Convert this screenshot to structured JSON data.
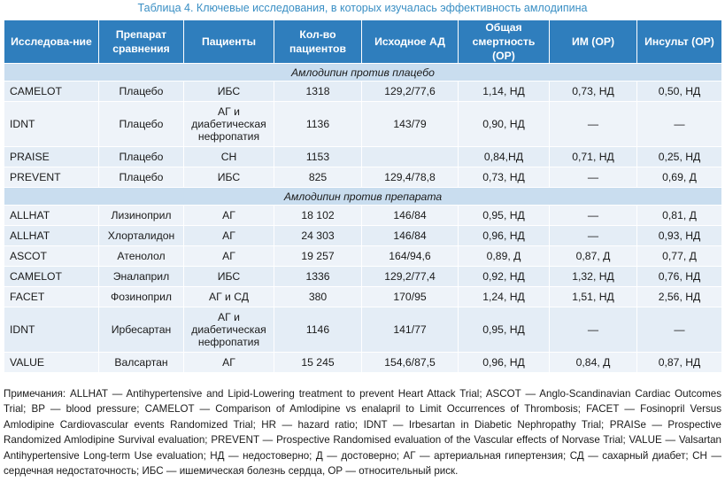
{
  "caption": "Таблица 4. Ключевые исследования, в которых изучалась эффективность амлодипина",
  "headers": [
    "Исследова-ние",
    "Препарат сравнения",
    "Пациенты",
    "Кол-во пациентов",
    "Исходное АД",
    "Общая смертность (ОР)",
    "ИМ (ОР)",
    "Инсульт (ОР)"
  ],
  "section1": "Амлодипин против плацебо",
  "rows1": [
    [
      "CAMELOT",
      "Плацебо",
      "ИБС",
      "1318",
      "129,2/77,6",
      "1,14, НД",
      "0,73, НД",
      "0,50, НД"
    ],
    [
      "IDNT",
      "Плацебо",
      "АГ и диабетическая нефропатия",
      "1136",
      "143/79",
      "0,90, НД",
      "—",
      "—"
    ],
    [
      "PRAISE",
      "Плацебо",
      "СН",
      "1153",
      "",
      "0,84,НД",
      "0,71, НД",
      "0,25, НД"
    ],
    [
      "PREVENT",
      "Плацебо",
      "ИБС",
      "825",
      "129,4/78,8",
      "0,73, НД",
      "—",
      "0,69, Д"
    ]
  ],
  "section2": "Амлодипин против препарата",
  "rows2": [
    [
      "ALLHAT",
      "Лизиноприл",
      "АГ",
      "18 102",
      "146/84",
      "0,95, НД",
      "—",
      "0,81, Д"
    ],
    [
      "ALLHAT",
      "Хлорталидон",
      "АГ",
      "24 303",
      "146/84",
      "0,96, НД",
      "—",
      "0,93, НД"
    ],
    [
      "ASCOT",
      "Атенолол",
      "АГ",
      "19 257",
      "164/94,6",
      "0,89, Д",
      "0,87, Д",
      "0,77, Д"
    ],
    [
      "CAMELOT",
      "Эналаприл",
      "ИБС",
      "1336",
      "129,2/77,4",
      "0,92, НД",
      "1,32, НД",
      "0,76, НД"
    ],
    [
      "FACET",
      "Фозиноприл",
      "АГ и СД",
      "380",
      "170/95",
      "1,24, НД",
      "1,51, НД",
      "2,56, НД"
    ],
    [
      "IDNT",
      "Ирбесартан",
      "АГ и диабетическая нефропатия",
      "1146",
      "141/77",
      "0,95, НД",
      "—",
      "—"
    ],
    [
      "VALUE",
      "Валсартан",
      "АГ",
      "15 245",
      "154,6/87,5",
      "0,96, НД",
      "0,84, Д",
      "0,87, НД"
    ]
  ],
  "notes": "Примечания: ALLHAT — Antihypertensive and Lipid-Lowering treatment to prevent Heart Attack Trial; ASCOT — Anglo-Scandinavian Cardiac Outcomes Trial; BP — blood pressure; CAMELOT — Comparison of Amlodipine vs enalapril to Limit Occurrences of Thrombosis; FACET — Fosinopril Versus Amlodipine Cardiovascular events Randomized Trial; HR — hazard ratio; IDNT — Irbesartan in Diabetic Nephropathy Trial; PRAISe — Prospective Randomized Amlodipine Survival evaluation; PREVENT — Prospective Randomised evaluation of the Vascular effects of Norvase Trial; VALUE — Valsartan Antihypertensive Long-term Use evaluation; НД — недостоверно; Д — достоверно; АГ — артериальная гипертензия; СД — сахарный диабет; СН — сердечная недостаточность; ИБС — ишемическая болезнь сердца, ОР — относительный риск."
}
